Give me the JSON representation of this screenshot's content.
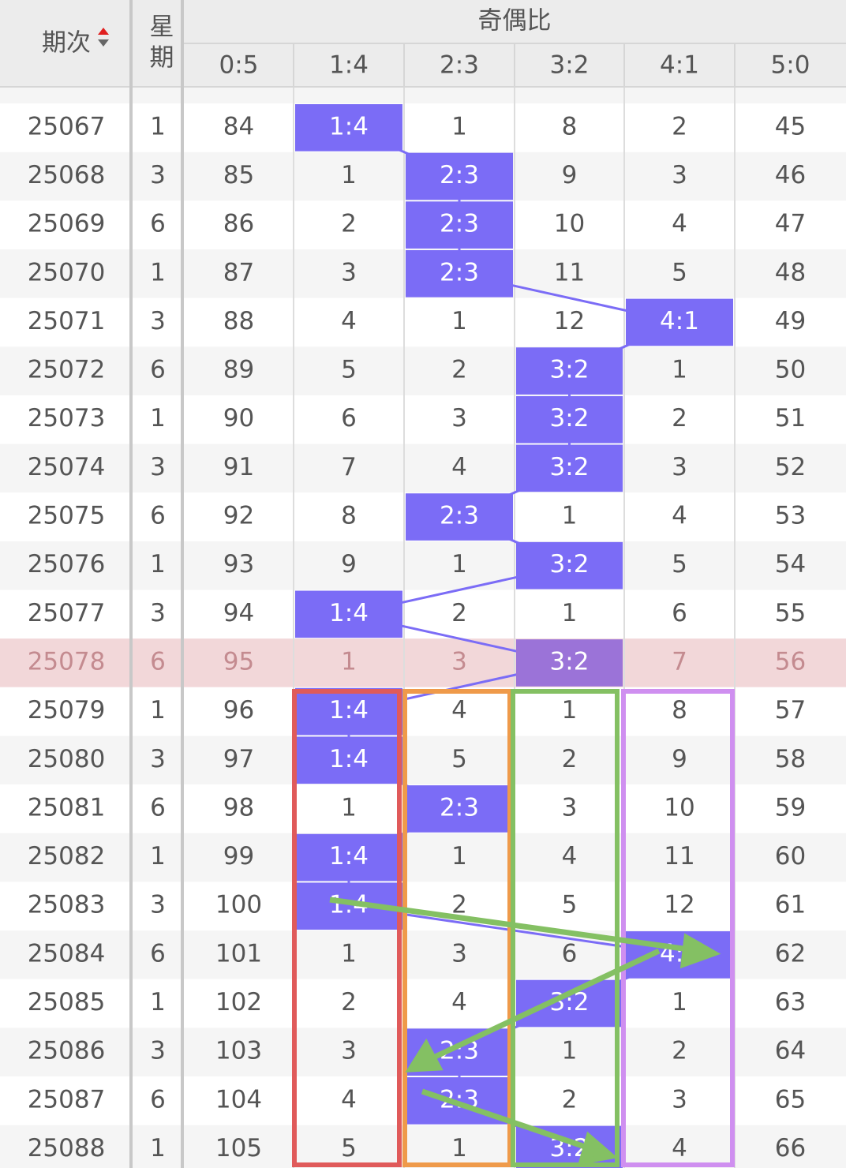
{
  "header": {
    "issue": "期次",
    "weekday": "星期",
    "group": "奇偶比",
    "columns": [
      "0:5",
      "1:4",
      "2:3",
      "3:2",
      "4:1",
      "5:0"
    ]
  },
  "rows": [
    {
      "issue": 25067,
      "weekday": 1,
      "cells": [
        84,
        "1:4",
        1,
        8,
        2,
        45
      ]
    },
    {
      "issue": 25068,
      "weekday": 3,
      "cells": [
        85,
        1,
        "2:3",
        9,
        3,
        46
      ]
    },
    {
      "issue": 25069,
      "weekday": 6,
      "cells": [
        86,
        2,
        "2:3",
        10,
        4,
        47
      ]
    },
    {
      "issue": 25070,
      "weekday": 1,
      "cells": [
        87,
        3,
        "2:3",
        11,
        5,
        48
      ]
    },
    {
      "issue": 25071,
      "weekday": 3,
      "cells": [
        88,
        4,
        1,
        12,
        "4:1",
        49
      ]
    },
    {
      "issue": 25072,
      "weekday": 6,
      "cells": [
        89,
        5,
        2,
        "3:2",
        1,
        50
      ]
    },
    {
      "issue": 25073,
      "weekday": 1,
      "cells": [
        90,
        6,
        3,
        "3:2",
        2,
        51
      ]
    },
    {
      "issue": 25074,
      "weekday": 3,
      "cells": [
        91,
        7,
        4,
        "3:2",
        3,
        52
      ]
    },
    {
      "issue": 25075,
      "weekday": 6,
      "cells": [
        92,
        8,
        "2:3",
        1,
        4,
        53
      ]
    },
    {
      "issue": 25076,
      "weekday": 1,
      "cells": [
        93,
        9,
        1,
        "3:2",
        5,
        54
      ]
    },
    {
      "issue": 25077,
      "weekday": 3,
      "cells": [
        94,
        "1:4",
        2,
        1,
        6,
        55
      ]
    },
    {
      "issue": 25078,
      "weekday": 6,
      "cells": [
        95,
        1,
        3,
        "3:2",
        7,
        56
      ],
      "highlighted": true
    },
    {
      "issue": 25079,
      "weekday": 1,
      "cells": [
        96,
        "1:4",
        4,
        1,
        8,
        57
      ]
    },
    {
      "issue": 25080,
      "weekday": 3,
      "cells": [
        97,
        "1:4",
        5,
        2,
        9,
        58
      ]
    },
    {
      "issue": 25081,
      "weekday": 6,
      "cells": [
        98,
        1,
        "2:3",
        3,
        10,
        59
      ]
    },
    {
      "issue": 25082,
      "weekday": 1,
      "cells": [
        99,
        "1:4",
        1,
        4,
        11,
        60
      ]
    },
    {
      "issue": 25083,
      "weekday": 3,
      "cells": [
        100,
        "1:4",
        2,
        5,
        12,
        61
      ]
    },
    {
      "issue": 25084,
      "weekday": 6,
      "cells": [
        101,
        1,
        3,
        6,
        "4:1",
        62
      ]
    },
    {
      "issue": 25085,
      "weekday": 1,
      "cells": [
        102,
        2,
        4,
        "3:2",
        1,
        63
      ]
    },
    {
      "issue": 25086,
      "weekday": 3,
      "cells": [
        103,
        3,
        "2:3",
        1,
        2,
        64
      ]
    },
    {
      "issue": 25087,
      "weekday": 6,
      "cells": [
        104,
        4,
        "2:3",
        2,
        3,
        65
      ]
    },
    {
      "issue": 25088,
      "weekday": 1,
      "cells": [
        105,
        5,
        1,
        "3:2",
        4,
        66
      ]
    }
  ]
}
